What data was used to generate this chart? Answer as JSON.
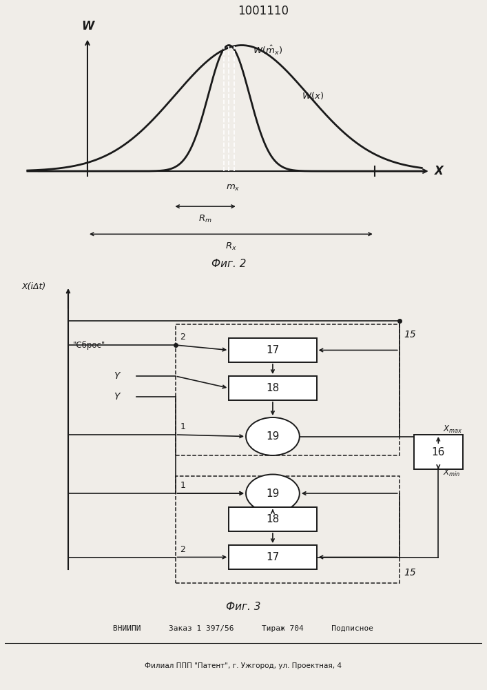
{
  "title": "1001110",
  "fig2_label": "Фиг. 2",
  "fig3_label": "Фиг. 3",
  "bg_color": "#f0ede8",
  "line_color": "#1a1a1a",
  "footer_line1": "ВНИИПИ      Заказ 1 397/56      Тираж 704      Подписное",
  "footer_line2": "Филиал ППП \"Патент\", г. Ужгород, ул. Проектная, 4"
}
